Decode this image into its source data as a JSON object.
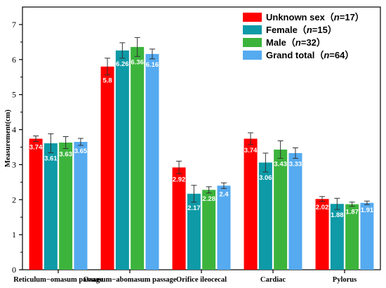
{
  "chart_data": {
    "type": "bar",
    "ylabel": "Measurement(cm)",
    "ylim": [
      0,
      7.5
    ],
    "yticks": [
      0,
      1,
      2,
      3,
      4,
      5,
      6,
      7
    ],
    "categories": [
      "Reticulum−omasum passage",
      "Omasum−abomasum passage",
      "Orifice ileocecal",
      "Cardiac",
      "Pylorus"
    ],
    "series": [
      {
        "legend_main": "Unknown sex（",
        "legend_italic": "n",
        "legend_tail": "=17）",
        "color": "#ff0000",
        "values": [
          3.74,
          5.8,
          2.92,
          3.74,
          2.02
        ],
        "value_labels": [
          "3.74",
          "5.8",
          "2.92",
          "3.74",
          "2.02"
        ],
        "errors": [
          0.08,
          0.24,
          0.18,
          0.17,
          0.07
        ]
      },
      {
        "legend_main": "Female（",
        "legend_italic": "n",
        "legend_tail": "=15）",
        "color": "#0e9aa7",
        "values": [
          3.61,
          6.26,
          2.17,
          3.06,
          1.88
        ],
        "value_labels": [
          "3.61",
          "6.26",
          "2.17",
          "3.06",
          "1.88"
        ],
        "errors": [
          0.27,
          0.22,
          0.24,
          0.27,
          0.16
        ]
      },
      {
        "legend_main": "Male（",
        "legend_italic": "n",
        "legend_tail": "=32）",
        "color": "#3cb43c",
        "values": [
          3.63,
          6.36,
          2.28,
          3.43,
          1.87
        ],
        "value_labels": [
          "3.63",
          "6.36",
          "2.28",
          "3.43",
          "1.87"
        ],
        "errors": [
          0.17,
          0.27,
          0.09,
          0.25,
          0.06
        ]
      },
      {
        "legend_main": "Grand total（",
        "legend_italic": "n",
        "legend_tail": "=64）",
        "color": "#55aaf0",
        "values": [
          3.65,
          6.16,
          2.4,
          3.33,
          1.91
        ],
        "value_labels": [
          "3.65",
          "6.16",
          "2.4",
          "3.33",
          "1.91"
        ],
        "errors": [
          0.1,
          0.14,
          0.08,
          0.15,
          0.05
        ]
      }
    ],
    "legend_position": "top-right",
    "grid": false
  }
}
